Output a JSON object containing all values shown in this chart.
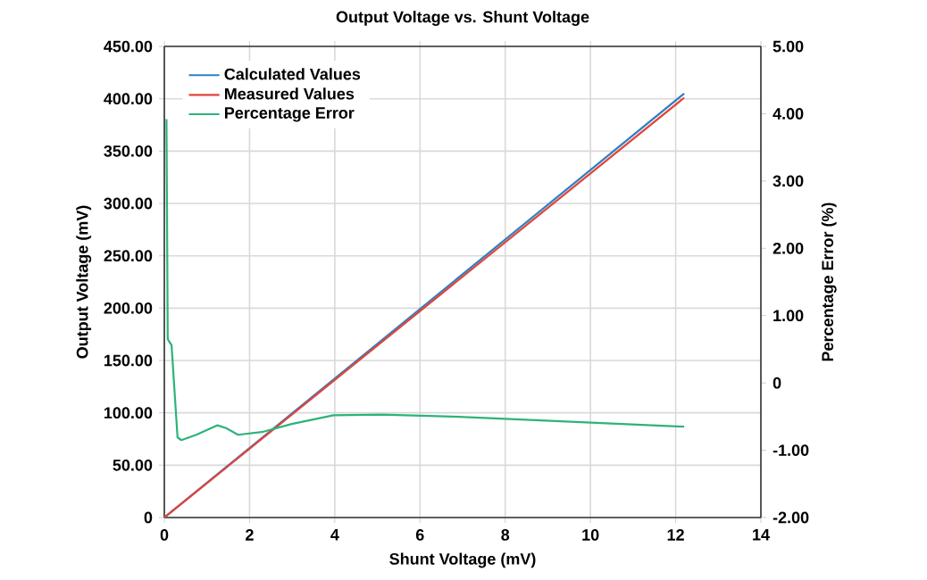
{
  "chart_data": {
    "type": "line",
    "title": "Output Voltage vs. Shunt Voltage",
    "xlabel": "Shunt Voltage (mV)",
    "ylabel": "Output Voltage (mV)",
    "y2label": "Percentage Error (%)",
    "series": [
      {
        "name": "Calculated Values",
        "color": "#2f7fc1",
        "x": [
          0,
          12.2
        ],
        "values": [
          0,
          405
        ]
      },
      {
        "name": "Measured Values",
        "color": "#e0453a",
        "x": [
          0,
          12.2
        ],
        "values": [
          0,
          401
        ]
      },
      {
        "name": "Percentage Error",
        "color": "#2db37a",
        "axis": "y2",
        "x": [
          0.05,
          0.08,
          0.17,
          0.31,
          0.4,
          0.75,
          1.24,
          1.45,
          1.73,
          2.29,
          2.99,
          3.97,
          5.1,
          6.76,
          7.88,
          12.2
        ],
        "values": [
          3.92,
          0.65,
          0.56,
          -0.81,
          -0.85,
          -0.77,
          -0.63,
          -0.67,
          -0.77,
          -0.73,
          -0.61,
          -0.48,
          -0.47,
          -0.5,
          -0.53,
          -0.65
        ]
      }
    ],
    "xlim": [
      0,
      14
    ],
    "xticks": [
      0,
      2,
      4,
      6,
      8,
      10,
      12,
      14
    ],
    "ylim": [
      0,
      450
    ],
    "yticks": [
      {
        "value": 0,
        "label": "0"
      },
      {
        "value": 50,
        "label": "50.00"
      },
      {
        "value": 100,
        "label": "100.00"
      },
      {
        "value": 150,
        "label": "150.00"
      },
      {
        "value": 200,
        "label": "200.00"
      },
      {
        "value": 250,
        "label": "250.00"
      },
      {
        "value": 300,
        "label": "300.00"
      },
      {
        "value": 350,
        "label": "350.00"
      },
      {
        "value": 400,
        "label": "400.00"
      },
      {
        "value": 450,
        "label": "450.00"
      }
    ],
    "y2lim": [
      -2,
      5
    ],
    "y2ticks": [
      {
        "value": -2,
        "label": "-2.00"
      },
      {
        "value": -1,
        "label": "-1.00"
      },
      {
        "value": 0,
        "label": "0"
      },
      {
        "value": 1,
        "label": "1.00"
      },
      {
        "value": 2,
        "label": "2.00"
      },
      {
        "value": 3,
        "label": "3.00"
      },
      {
        "value": 4,
        "label": "4.00"
      },
      {
        "value": 5,
        "label": "5.00"
      }
    ],
    "grid": true,
    "legend": "top left",
    "marker": "none",
    "line_style": "solid"
  }
}
